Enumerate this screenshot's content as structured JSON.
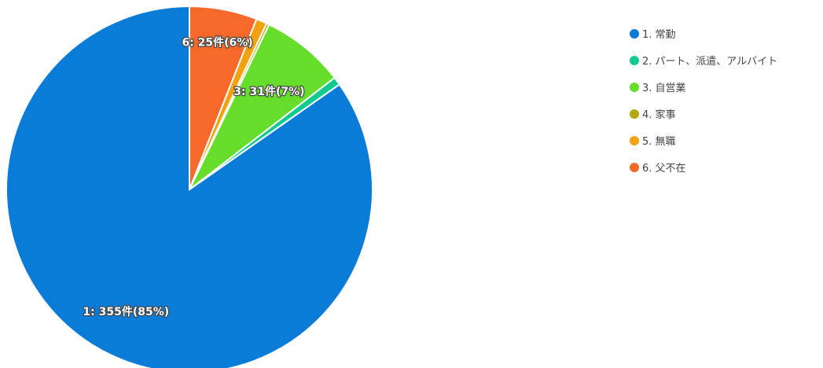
{
  "chart_data": {
    "type": "pie",
    "start_angle_deg": 0,
    "direction": "counterclockwise",
    "legend_position": "right",
    "slices": [
      {
        "key": "1",
        "label": "1. 常勤",
        "value": 355,
        "percent": 85,
        "color": "#0b7bd8",
        "data_label": "1: 355件(85%)"
      },
      {
        "key": "2",
        "label": "2. パート、派遣、アルバイト",
        "value": 3,
        "percent": 1,
        "color": "#12c98f",
        "data_label": ""
      },
      {
        "key": "3",
        "label": "3. 自営業",
        "value": 31,
        "percent": 7,
        "color": "#66dd2a",
        "data_label": "3: 31件(7%)"
      },
      {
        "key": "4",
        "label": "4. 家事",
        "value": 1,
        "percent": 0,
        "color": "#b3aa0a",
        "data_label": ""
      },
      {
        "key": "5",
        "label": "5. 無職",
        "value": 4,
        "percent": 1,
        "color": "#f2a20f",
        "data_label": ""
      },
      {
        "key": "6",
        "label": "6. 父不在",
        "value": 25,
        "percent": 6,
        "color": "#f7692a",
        "data_label": "6: 25件(6%)"
      }
    ]
  }
}
